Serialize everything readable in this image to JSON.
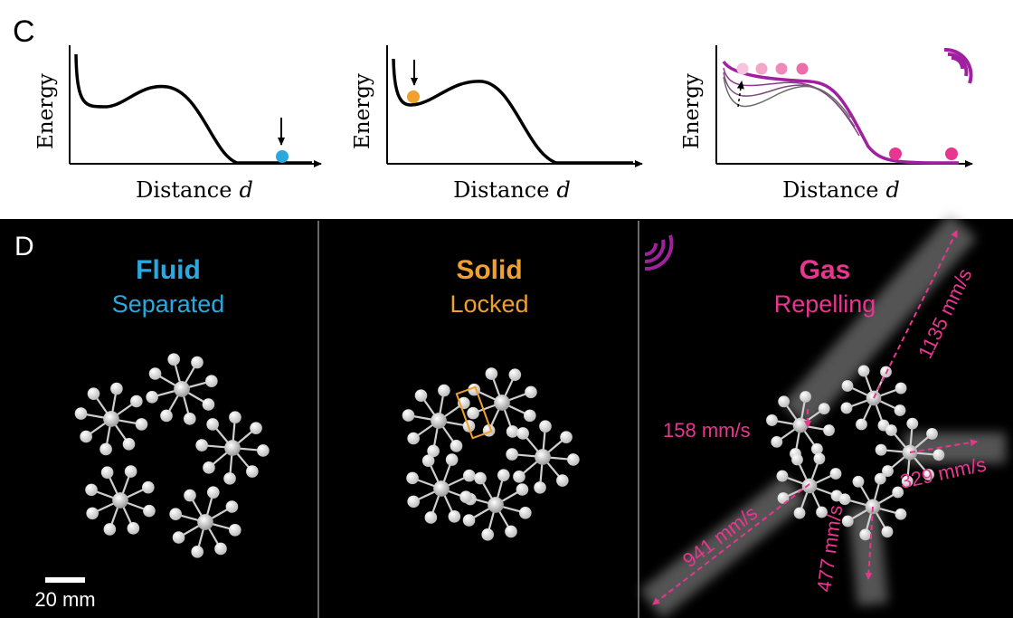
{
  "panel_c": {
    "label": "C",
    "plots": [
      {
        "ylabel": "Energy",
        "xlabel": "Distance",
        "xvar": "d",
        "marker_color": "#2aa8e0"
      },
      {
        "ylabel": "Energy",
        "xlabel": "Distance",
        "xvar": "d",
        "marker_color": "#f0a030"
      },
      {
        "ylabel": "Energy",
        "xlabel": "Distance",
        "xvar": "d",
        "marker_color": "#e8368f",
        "accent_color": "#a020a0"
      }
    ]
  },
  "panel_d": {
    "label": "D",
    "phases": [
      {
        "title": "Fluid",
        "subtitle": "Separated",
        "color": "#2aa8e0"
      },
      {
        "title": "Solid",
        "subtitle": "Locked",
        "color": "#f0a030"
      },
      {
        "title": "Gas",
        "subtitle": "Repelling",
        "color": "#e8368f"
      }
    ],
    "scale_bar": "20 mm",
    "speeds": [
      "1135 mm/s",
      "158 mm/s",
      "329 mm/s",
      "941 mm/s",
      "477 mm/s"
    ],
    "speed_color": "#e8368f",
    "wave_icon_color": "#a020a0"
  }
}
